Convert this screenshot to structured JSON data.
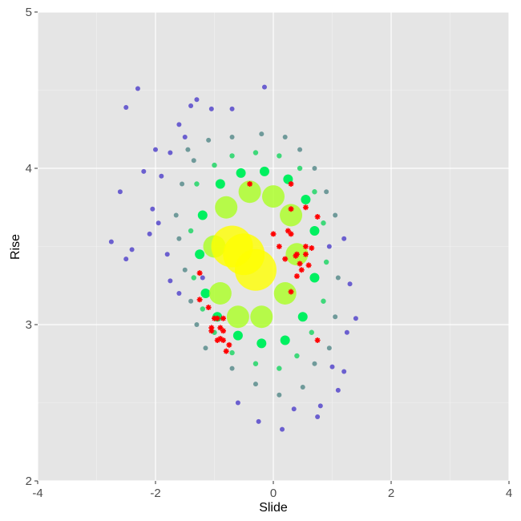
{
  "chart_data": {
    "type": "scatter",
    "x_label": "Slide",
    "y_label": "Rise",
    "xlim": [
      -4,
      4
    ],
    "ylim": [
      2,
      5
    ],
    "xticks": [
      -4,
      -2,
      0,
      2,
      4
    ],
    "yticks": [
      2,
      3,
      4,
      5
    ],
    "minor_xticks": [
      -3,
      -1,
      1,
      3
    ],
    "minor_yticks": [
      2.5,
      3.5,
      4.5
    ],
    "grid": true,
    "background": "#e5e5e5",
    "groups": [
      {
        "color": "#6b5fcf",
        "x": [
          -2.3,
          -2.5,
          -1.3,
          -1.4,
          -0.7,
          -0.15,
          -1.05,
          -2.6,
          -2.75,
          -2.4,
          -2.2,
          -2.05,
          -1.95,
          -2.1,
          -1.8,
          -1.6,
          -1.75,
          -2.5,
          -1.9,
          -1.75,
          -1.5,
          -1.6,
          -2.0,
          -1.2,
          1.4,
          1.3,
          1.25,
          1.2,
          1.0,
          0.75,
          0.8,
          0.35,
          0.15,
          -0.25,
          -0.6,
          1.1,
          1.2,
          0.95
        ],
        "y": [
          4.51,
          4.39,
          4.44,
          4.4,
          4.38,
          4.52,
          4.38,
          3.85,
          3.53,
          3.48,
          3.98,
          3.74,
          3.65,
          3.58,
          3.45,
          3.2,
          3.28,
          3.42,
          3.95,
          4.1,
          4.2,
          4.28,
          4.12,
          3.3,
          3.04,
          3.26,
          2.95,
          2.7,
          2.73,
          2.41,
          2.48,
          2.46,
          2.33,
          2.38,
          2.5,
          2.58,
          3.55,
          3.5
        ]
      },
      {
        "color": "#6f9a9a",
        "x": [
          -1.45,
          -1.35,
          -1.55,
          -1.65,
          -1.6,
          -1.5,
          -1.4,
          -1.3,
          -1.15,
          -0.7,
          -0.3,
          0.1,
          0.5,
          0.7,
          0.95,
          1.05,
          1.1,
          1.05,
          0.9,
          0.7,
          0.45,
          0.2,
          -0.2,
          -0.7,
          -1.1
        ],
        "y": [
          4.12,
          4.05,
          3.9,
          3.7,
          3.55,
          3.35,
          3.15,
          3.0,
          2.85,
          2.72,
          2.62,
          2.55,
          2.6,
          2.75,
          2.85,
          3.05,
          3.3,
          3.7,
          3.85,
          4.0,
          4.12,
          4.2,
          4.22,
          4.2,
          4.18
        ]
      },
      {
        "color": "#3fd87a",
        "x": [
          -1.3,
          -1.4,
          -1.35,
          -1.2,
          -1.0,
          -0.7,
          -0.3,
          0.1,
          0.4,
          0.65,
          0.85,
          0.9,
          0.85,
          0.7,
          0.45,
          0.1,
          -0.3,
          -0.7,
          -1.0
        ],
        "y": [
          3.9,
          3.6,
          3.3,
          3.1,
          2.95,
          2.82,
          2.75,
          2.72,
          2.8,
          2.95,
          3.15,
          3.4,
          3.65,
          3.85,
          4.0,
          4.08,
          4.1,
          4.08,
          4.02
        ]
      },
      {
        "color": "#00f060",
        "x": [
          -1.2,
          -1.25,
          -1.15,
          -0.95,
          -0.6,
          -0.2,
          0.2,
          0.5,
          0.7,
          0.7,
          0.55,
          0.25,
          -0.15,
          -0.55,
          -0.9
        ],
        "y": [
          3.7,
          3.45,
          3.2,
          3.05,
          2.93,
          2.88,
          2.9,
          3.05,
          3.3,
          3.6,
          3.8,
          3.93,
          3.98,
          3.97,
          3.9
        ]
      },
      {
        "color": "#aaff22",
        "x": [
          -1.0,
          -0.9,
          -0.6,
          -0.2,
          0.2,
          0.4,
          0.3,
          0.0,
          -0.4,
          -0.8
        ],
        "y": [
          3.5,
          3.2,
          3.05,
          3.05,
          3.2,
          3.45,
          3.7,
          3.82,
          3.85,
          3.75
        ]
      },
      {
        "color": "#ffff00",
        "x": [
          -0.5,
          -0.3,
          -0.7
        ],
        "y": [
          3.45,
          3.35,
          3.5
        ]
      }
    ],
    "highlight": {
      "color": "#ff0000",
      "marker": "star",
      "x": [
        -0.4,
        0.3,
        0.55,
        0.3,
        0.75,
        0.0,
        0.25,
        0.3,
        0.1,
        0.55,
        0.65,
        0.4,
        0.38,
        0.2,
        0.55,
        0.45,
        0.6,
        0.48,
        0.4,
        0.3,
        -1.25,
        -1.25,
        -1.1,
        -1.0,
        -0.95,
        -0.85,
        -1.05,
        -0.9,
        -0.85,
        -1.05,
        -0.9,
        -0.85,
        -0.95,
        -0.75,
        -0.8,
        0.75
      ],
      "y": [
        3.9,
        3.9,
        3.75,
        3.74,
        3.69,
        3.58,
        3.6,
        3.58,
        3.5,
        3.5,
        3.49,
        3.45,
        3.44,
        3.42,
        3.45,
        3.39,
        3.38,
        3.35,
        3.31,
        3.21,
        3.33,
        3.16,
        3.11,
        3.04,
        3.04,
        3.04,
        2.98,
        2.98,
        2.96,
        2.96,
        2.91,
        2.9,
        2.9,
        2.87,
        2.83,
        2.9
      ]
    }
  }
}
